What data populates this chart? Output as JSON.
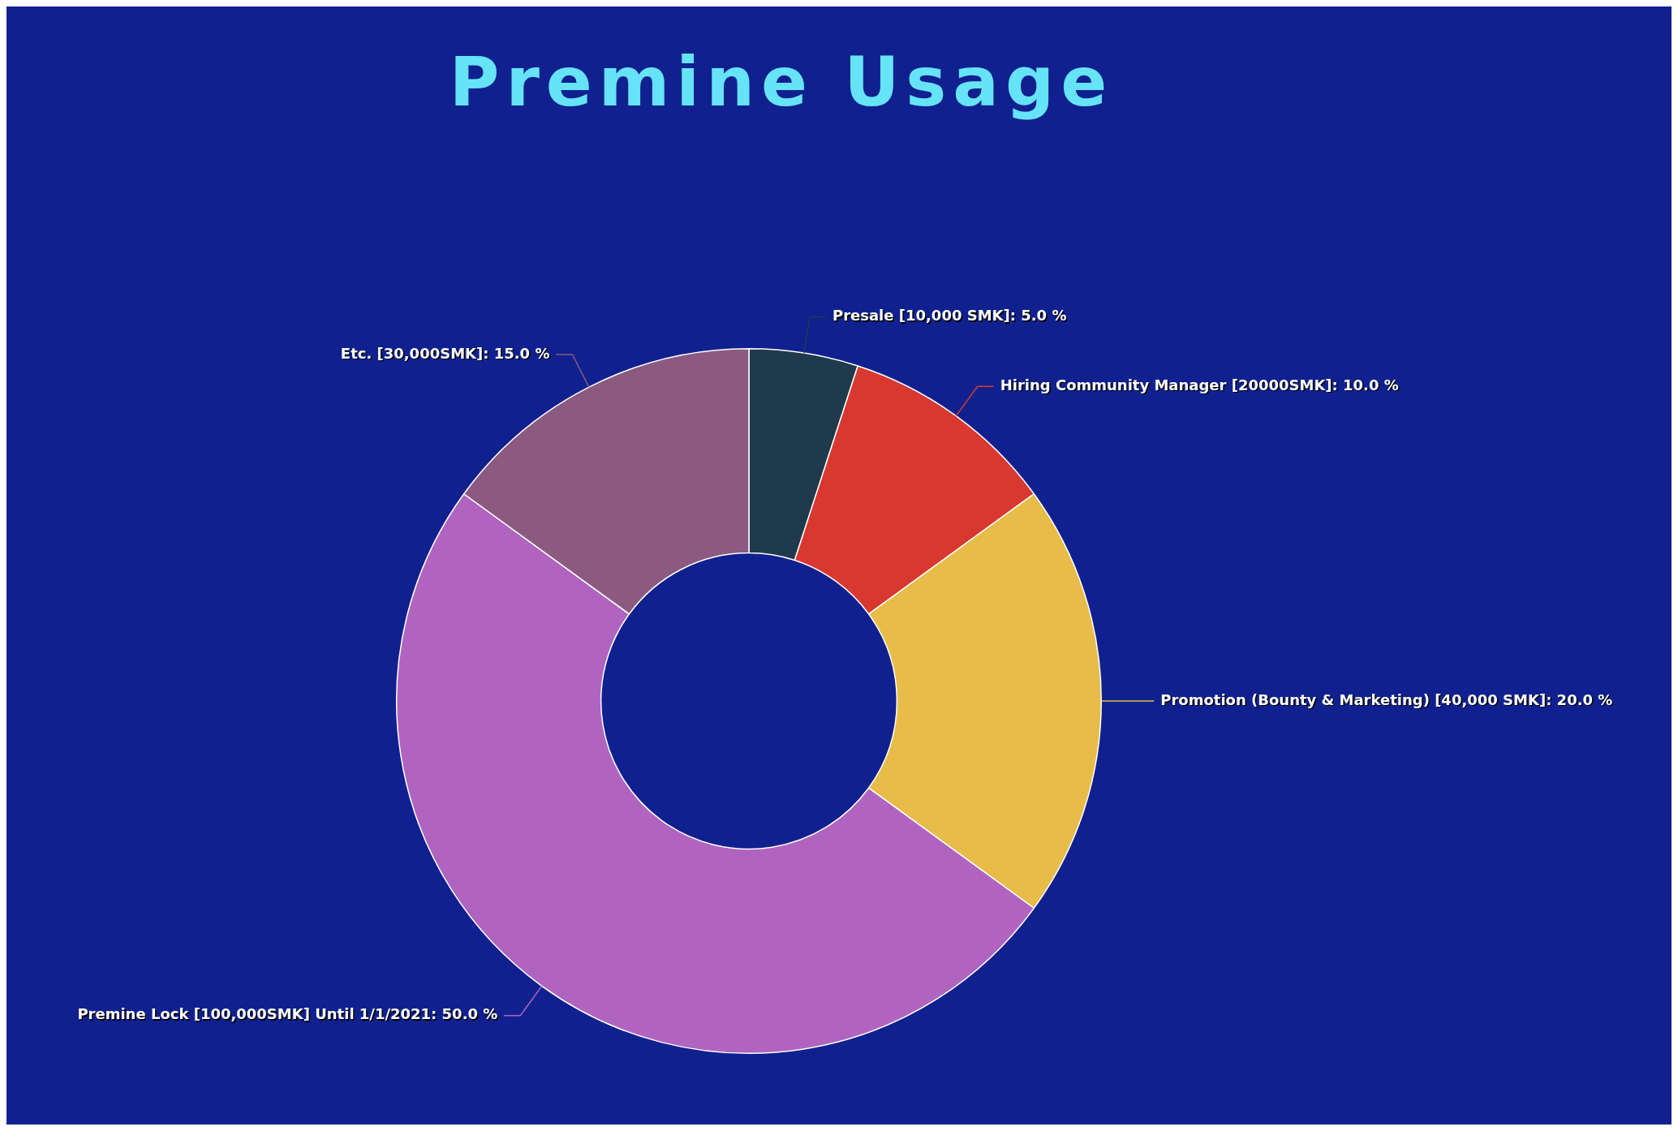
{
  "chart_data": {
    "type": "donut",
    "title": "Premine Usage",
    "categories": [
      "Presale [10,000 SMK]",
      "Hiring Community Manager [20000SMK]",
      "Promotion (Bounty & Marketing) [40,000 SMK]",
      "Premine Lock [100,000SMK] Until 1/1/2021",
      "Etc. [30,000SMK]"
    ],
    "values": [
      5,
      10,
      20,
      50,
      15
    ],
    "value_labels": [
      "5.0 %",
      "10.0 %",
      "20.0 %",
      "50.0 %",
      "15.0 %"
    ],
    "colors": [
      "#1f3a4d",
      "#d93831",
      "#e8bc48",
      "#b064c0",
      "#8c5a80"
    ],
    "legend": false
  }
}
